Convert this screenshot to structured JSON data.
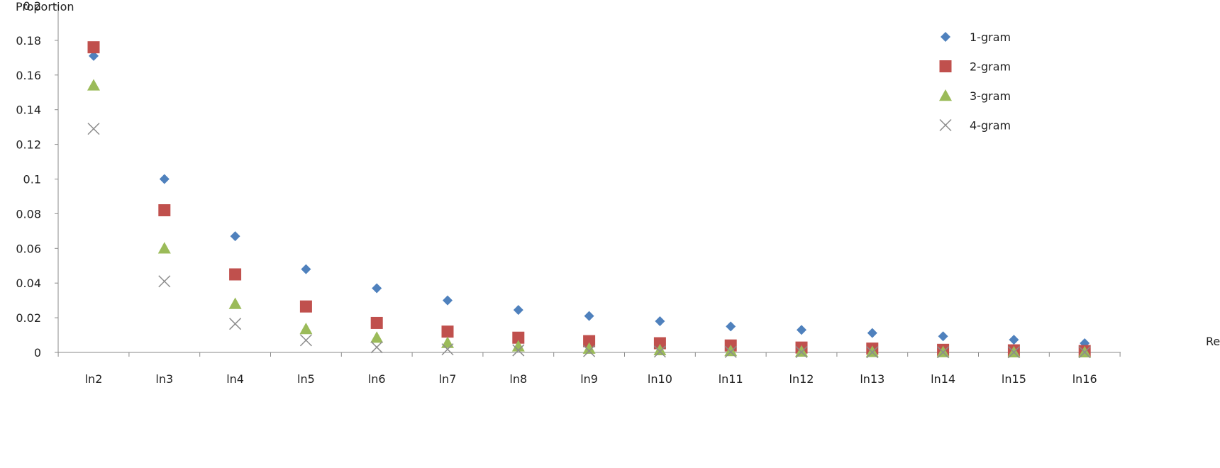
{
  "chart_data": {
    "type": "scatter",
    "title": "",
    "ylabel": "Proportion",
    "xlabel": "Re",
    "ylim": [
      0,
      0.2
    ],
    "yticks": [
      0,
      0.02,
      0.04,
      0.06,
      0.08,
      0.1,
      0.12,
      0.14,
      0.16,
      0.18,
      0.2
    ],
    "ytick_labels": [
      "0",
      "0.02",
      "0.04",
      "0.06",
      "0.08",
      "0.1",
      "0.12",
      "0.14",
      "0.16",
      "0.18",
      "0.2"
    ],
    "grid": false,
    "legend_position": "top-right",
    "categories": [
      "ln2",
      "ln3",
      "ln4",
      "ln5",
      "ln6",
      "ln7",
      "ln8",
      "ln9",
      "ln10",
      "ln11",
      "ln12",
      "ln13",
      "ln14",
      "ln15",
      "ln16"
    ],
    "series": [
      {
        "name": "1-gram",
        "marker": "diamond",
        "color": "#4f81bd",
        "values": [
          0.171,
          0.1,
          0.067,
          0.048,
          0.037,
          0.03,
          0.0245,
          0.021,
          0.018,
          0.015,
          0.013,
          0.0112,
          0.0093,
          0.0073,
          0.0053
        ]
      },
      {
        "name": "2-gram",
        "marker": "square",
        "color": "#c0504d",
        "values": [
          0.176,
          0.082,
          0.045,
          0.0265,
          0.017,
          0.012,
          0.0085,
          0.0065,
          0.0053,
          0.004,
          0.0028,
          0.0022,
          0.0015,
          0.0012,
          0.0008
        ]
      },
      {
        "name": "3-gram",
        "marker": "triangle",
        "color": "#9bbb59",
        "values": [
          0.154,
          0.06,
          0.028,
          0.0135,
          0.0085,
          0.0055,
          0.0035,
          0.0022,
          0.0013,
          0.0008,
          0.0005,
          0.0003,
          0.0002,
          0.0001,
          0.0001
        ]
      },
      {
        "name": "4-gram",
        "marker": "x",
        "color": "#8c8c8c",
        "values": [
          0.129,
          0.041,
          0.0165,
          0.007,
          0.003,
          0.0018,
          0.0012,
          0.0008,
          0.0005,
          0.0003,
          0.0002,
          0.0001,
          0.0001,
          0.0001,
          0.0001
        ]
      }
    ]
  }
}
